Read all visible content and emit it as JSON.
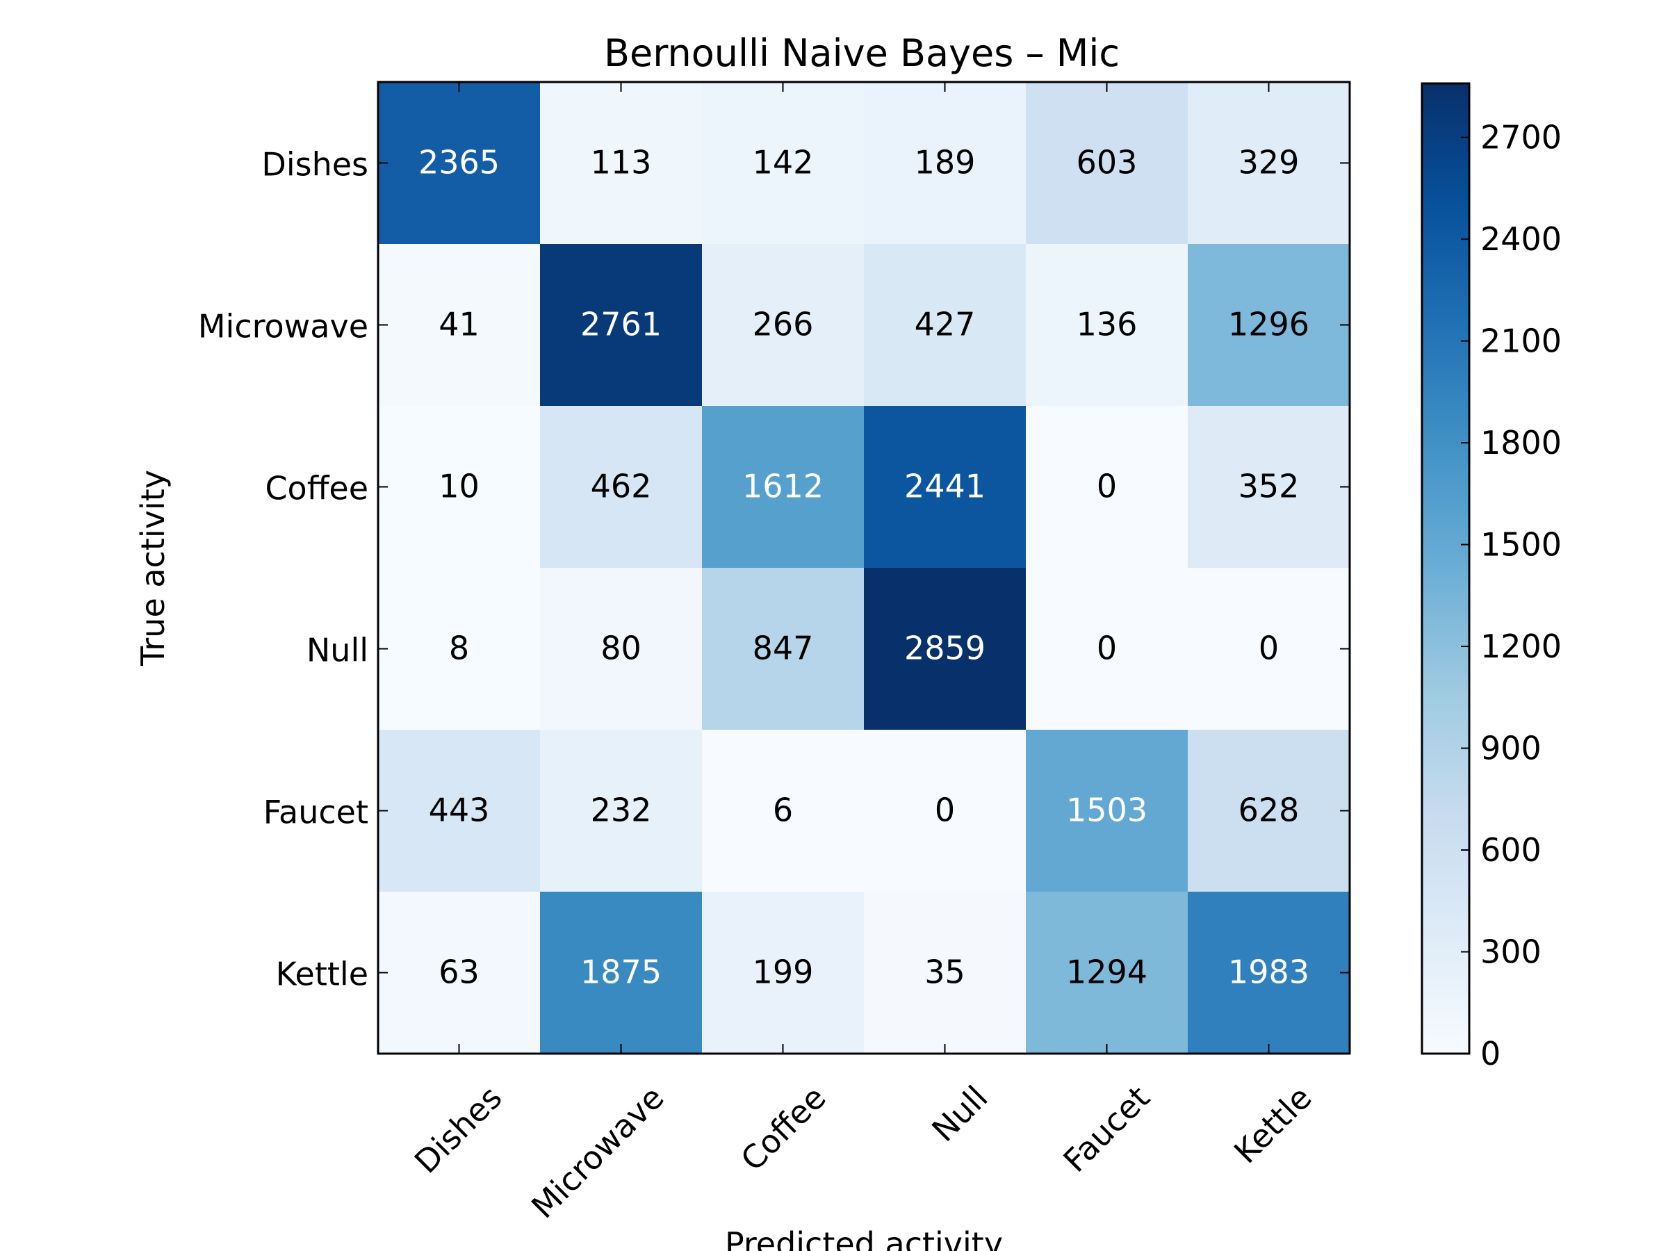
{
  "chart_data": {
    "type": "heatmap",
    "title": "Bernoulli Naive Bayes – Mic",
    "xlabel": "Predicted activity",
    "ylabel": "True activity",
    "x_categories": [
      "Dishes",
      "Microwave",
      "Coffee",
      "Null",
      "Faucet",
      "Kettle"
    ],
    "y_categories": [
      "Dishes",
      "Microwave",
      "Coffee",
      "Null",
      "Faucet",
      "Kettle"
    ],
    "matrix": [
      [
        2365,
        113,
        142,
        189,
        603,
        329
      ],
      [
        41,
        2761,
        266,
        427,
        136,
        1296
      ],
      [
        10,
        462,
        1612,
        2441,
        0,
        352
      ],
      [
        8,
        80,
        847,
        2859,
        0,
        0
      ],
      [
        443,
        232,
        6,
        0,
        1503,
        628
      ],
      [
        63,
        1875,
        199,
        35,
        1294,
        1983
      ]
    ],
    "colormap": "Blues",
    "colorbar": {
      "min": 0,
      "max": 2859,
      "ticks": [
        "0",
        "300",
        "600",
        "900",
        "1200",
        "1500",
        "1800",
        "2100",
        "2400",
        "2700"
      ]
    },
    "text_colors": {
      "light": "#ffffff",
      "dark": "#000000"
    },
    "text_threshold": 1429.5
  }
}
